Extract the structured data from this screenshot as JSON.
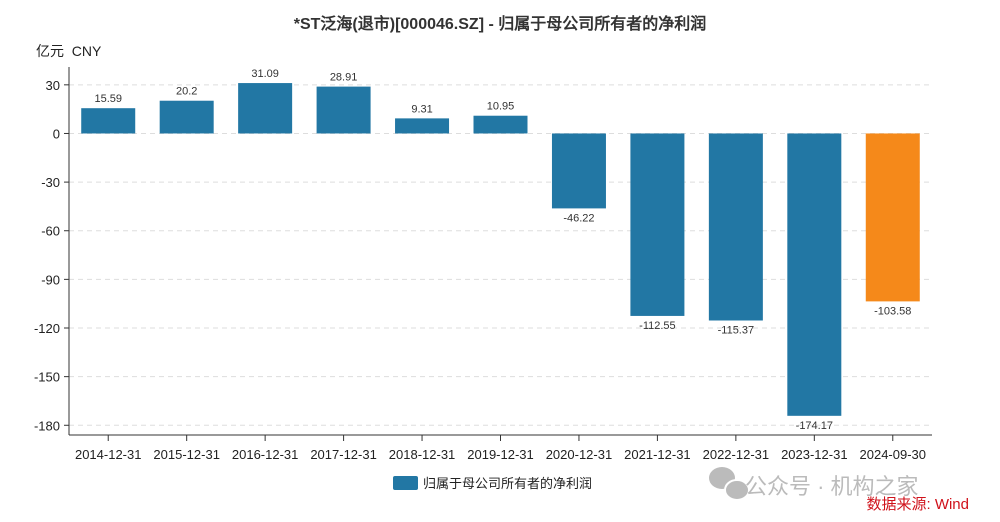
{
  "chart_data": {
    "type": "bar",
    "title": "*ST泛海(退市)[000046.SZ] - 归属于母公司所有者的净利润",
    "ylabel": "亿元  CNY",
    "xlabel": "",
    "categories": [
      "2014-12-31",
      "2015-12-31",
      "2016-12-31",
      "2017-12-31",
      "2018-12-31",
      "2019-12-31",
      "2020-12-31",
      "2021-12-31",
      "2022-12-31",
      "2023-12-31",
      "2024-09-30"
    ],
    "series": [
      {
        "name": "归属于母公司所有者的净利润",
        "values": [
          15.59,
          20.2,
          31.09,
          28.91,
          9.31,
          10.95,
          -46.22,
          -112.55,
          -115.37,
          -174.17,
          -103.58
        ]
      }
    ],
    "value_labels": [
      "15.59",
      "20.2",
      "31.09",
      "28.91",
      "9.31",
      "10.95",
      "-46.22",
      "-112.55",
      "-115.37",
      "-174.17",
      "-103.58"
    ],
    "yticks": [
      30,
      0,
      -30,
      -60,
      -90,
      -120,
      -150,
      -180
    ],
    "ylim": [
      -186,
      41
    ],
    "grid": true,
    "legend_position": "bottom",
    "colors": {
      "bar": "#2277a4",
      "highlight": "#f5891a",
      "highlight_index": 10
    }
  },
  "watermark": "公众号 · 机构之家",
  "source": "数据来源: Wind",
  "icons": {
    "watermark": "wechat-icon"
  }
}
